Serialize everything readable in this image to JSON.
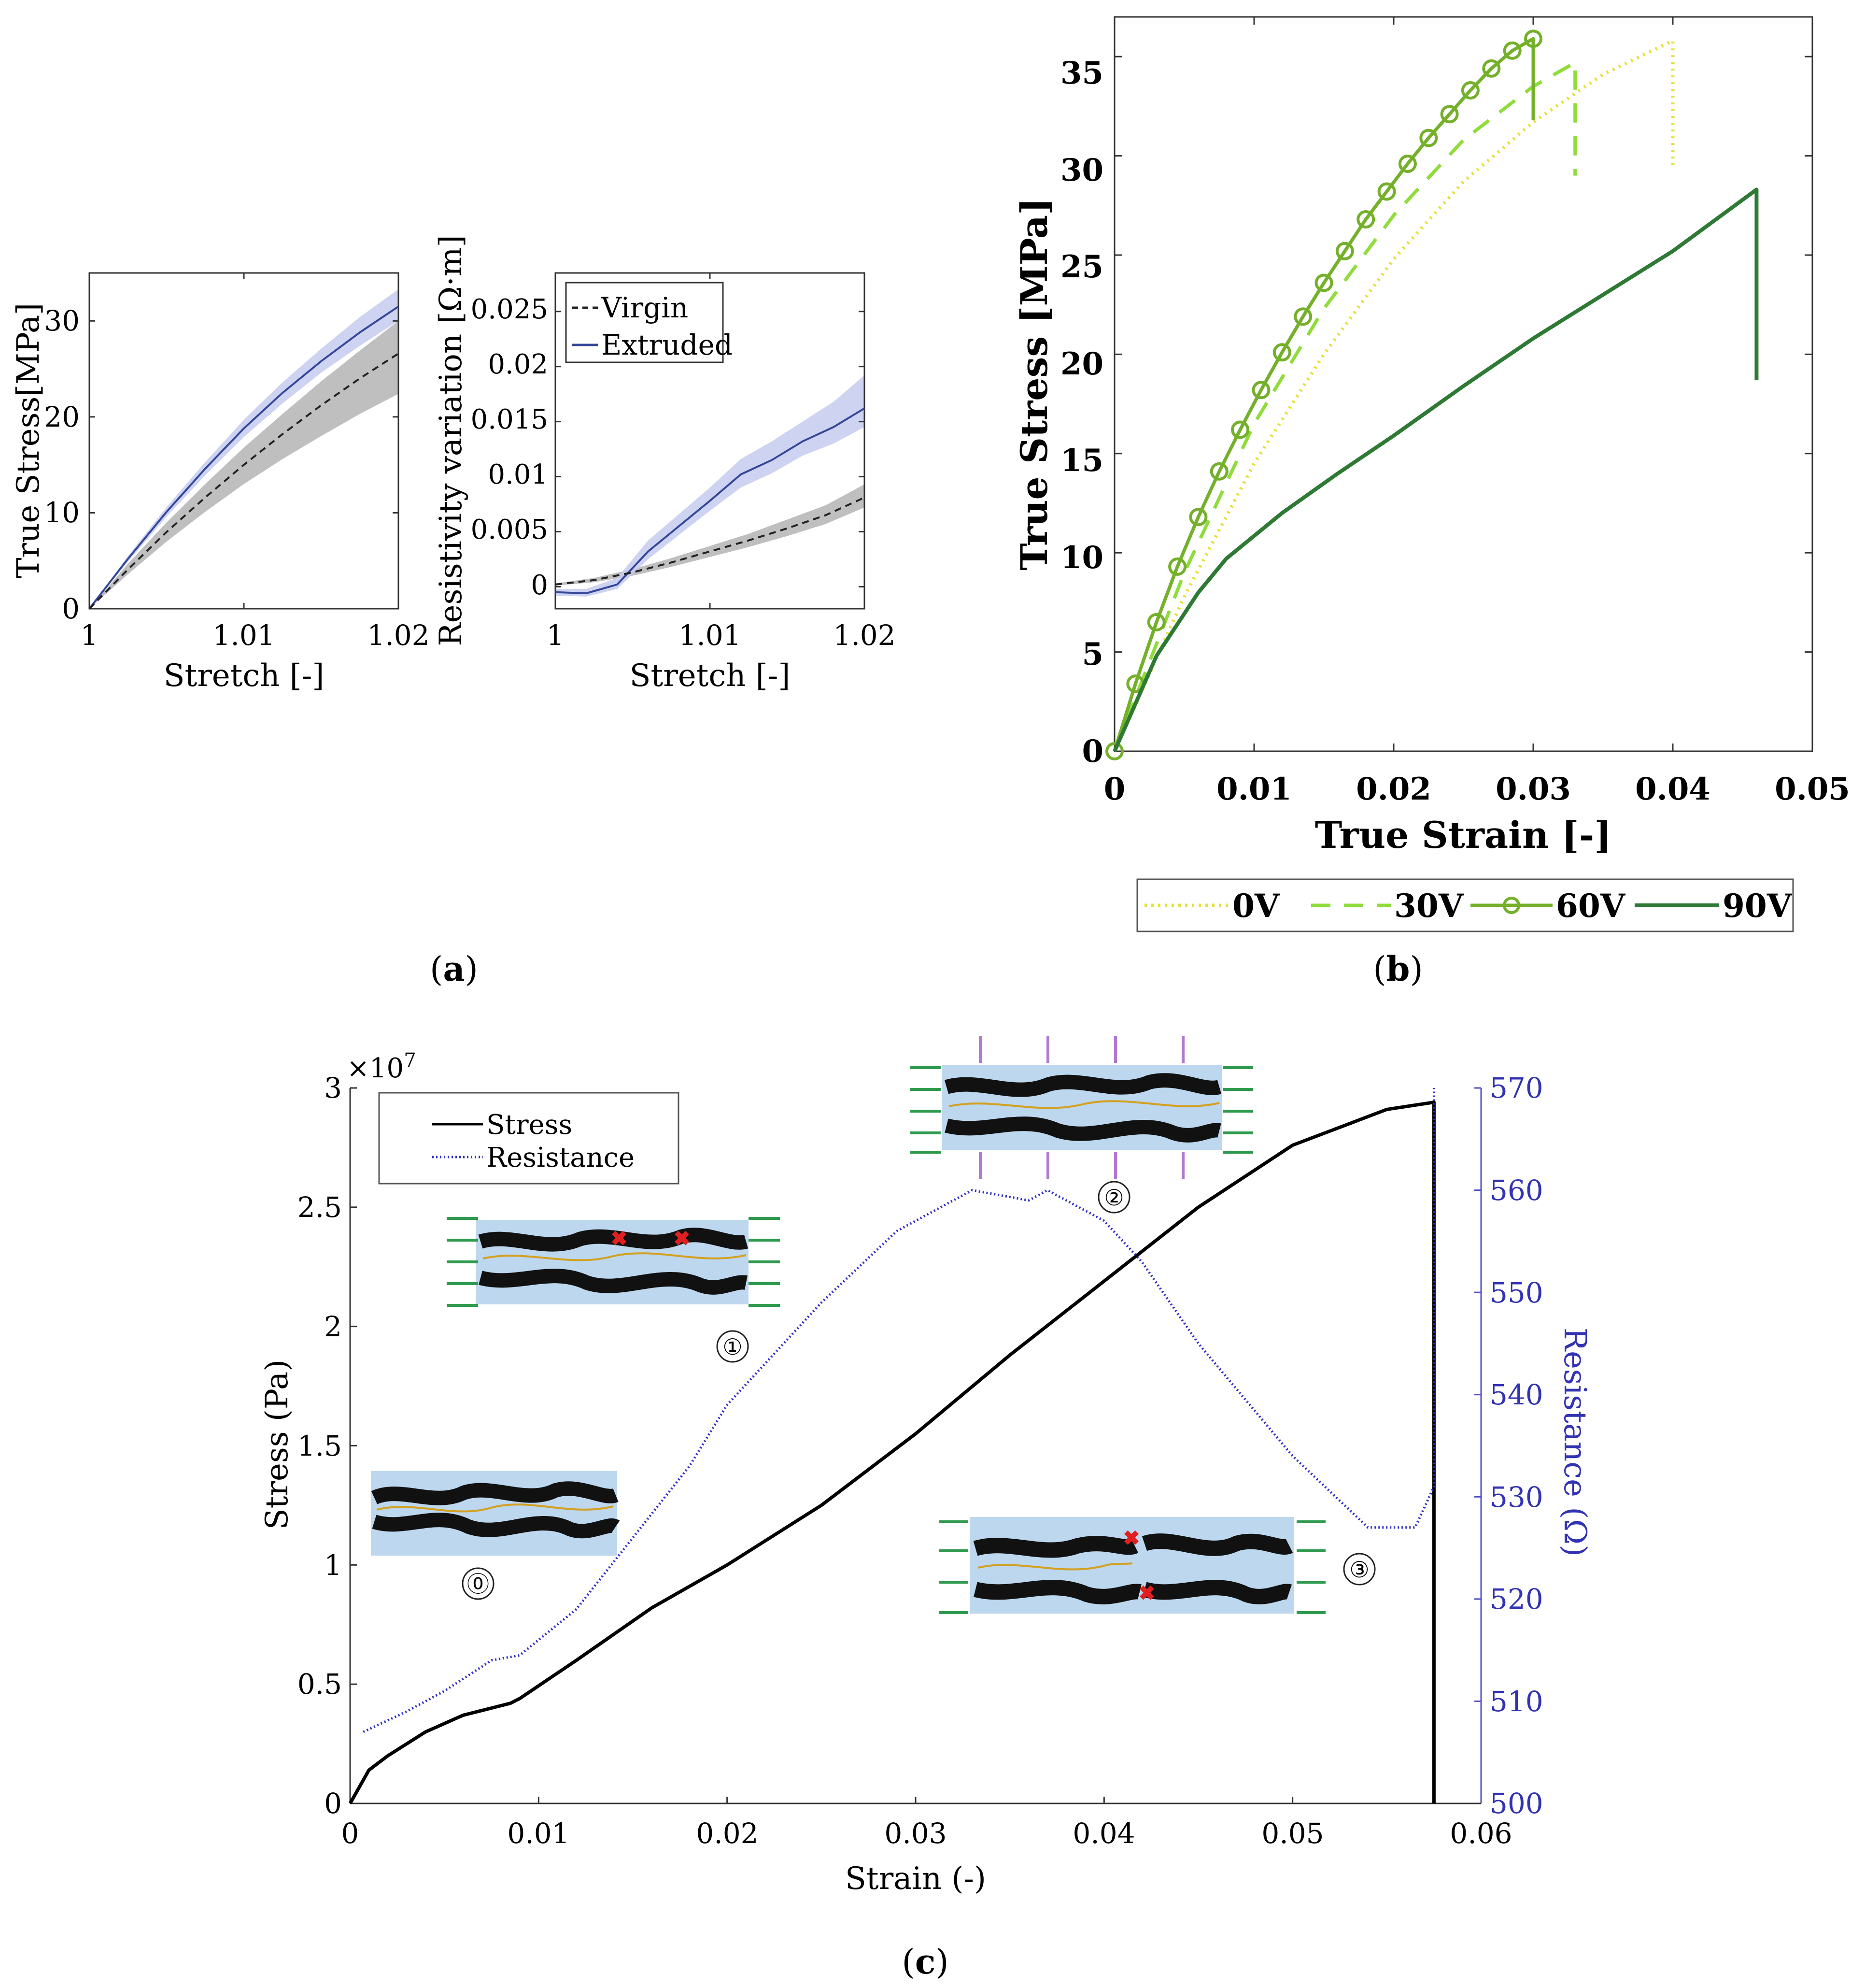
{
  "panel_labels": {
    "a": "a",
    "b": "b",
    "c": "c"
  },
  "colors": {
    "virgin": "#222222",
    "virgin_band": "#b4b4b4",
    "extruded": "#34489a",
    "extruded_band": "#c6cbef",
    "v0": "#e4e23a",
    "v30": "#8fdc3a",
    "v60": "#74b02a",
    "v90": "#2e7a35",
    "stress": "#000000",
    "resistance": "#3030c8"
  },
  "chart_data": [
    {
      "id": "a-left",
      "type": "line",
      "xlabel": "Stretch [-]",
      "ylabel": "True Stress[MPa]",
      "xlim": [
        1,
        1.02
      ],
      "ylim": [
        0,
        35
      ],
      "xticks": [
        1,
        1.01,
        1.02
      ],
      "xtick_labels": [
        "1",
        "1.01",
        "1.02"
      ],
      "yticks": [
        0,
        10,
        20,
        30
      ],
      "ytick_labels": [
        "0",
        "10",
        "20",
        "30"
      ],
      "series": [
        {
          "name": "Virgin",
          "style": "dashed",
          "x": [
            1,
            1.0025,
            1.005,
            1.0075,
            1.01,
            1.0125,
            1.015,
            1.0175,
            1.02
          ],
          "y": [
            0,
            4.1,
            8.0,
            11.6,
            15.0,
            18.2,
            21.2,
            24.0,
            26.6
          ],
          "band_lower": [
            0,
            3.6,
            7.0,
            10.1,
            13.0,
            15.6,
            18.0,
            20.3,
            22.4
          ],
          "band_upper": [
            0,
            4.7,
            9.0,
            13.0,
            16.8,
            20.3,
            23.7,
            26.9,
            30.0
          ]
        },
        {
          "name": "Extruded",
          "style": "solid",
          "x": [
            1,
            1.0025,
            1.005,
            1.0075,
            1.01,
            1.0125,
            1.015,
            1.0175,
            1.02
          ],
          "y": [
            0,
            5.2,
            10.1,
            14.6,
            18.8,
            22.5,
            25.8,
            28.8,
            31.5
          ],
          "band_lower": [
            0,
            4.9,
            9.6,
            13.9,
            17.9,
            21.4,
            24.6,
            27.4,
            30.0
          ],
          "band_upper": [
            0,
            5.5,
            10.6,
            15.3,
            19.7,
            23.6,
            27.1,
            30.4,
            33.3
          ]
        }
      ]
    },
    {
      "id": "a-right",
      "type": "line",
      "xlabel": "Stretch [-]",
      "ylabel": "Resistivity variation [Ω·m]",
      "xlim": [
        1,
        1.02
      ],
      "ylim": [
        -0.002,
        0.0285
      ],
      "xticks": [
        1,
        1.01,
        1.02
      ],
      "xtick_labels": [
        "1",
        "1.01",
        "1.02"
      ],
      "yticks": [
        0,
        0.005,
        0.01,
        0.015,
        0.02,
        0.025
      ],
      "ytick_labels": [
        "0",
        "0.005",
        "0.01",
        "0.015",
        "0.02",
        "0.025"
      ],
      "legend": {
        "position": "top-left",
        "entries": [
          "Virgin",
          "Extruded"
        ]
      },
      "series": [
        {
          "name": "Virgin",
          "style": "dashed",
          "x": [
            1,
            1.0025,
            1.005,
            1.0075,
            1.01,
            1.0125,
            1.015,
            1.0175,
            1.02
          ],
          "y": [
            0.0002,
            0.0006,
            0.0013,
            0.0022,
            0.0032,
            0.0042,
            0.0053,
            0.0065,
            0.0081
          ],
          "band_lower": [
            0.0001,
            0.0004,
            0.001,
            0.0018,
            0.0027,
            0.0036,
            0.0046,
            0.0057,
            0.0072
          ],
          "band_upper": [
            0.0003,
            0.0008,
            0.0016,
            0.0026,
            0.0037,
            0.0048,
            0.0061,
            0.0074,
            0.0093
          ]
        },
        {
          "name": "Extruded",
          "style": "solid",
          "x": [
            1,
            1.002,
            1.004,
            1.006,
            1.008,
            1.01,
            1.012,
            1.014,
            1.016,
            1.018,
            1.02
          ],
          "y": [
            -0.0005,
            -0.0006,
            0.0002,
            0.0032,
            0.0055,
            0.0078,
            0.0102,
            0.0115,
            0.0132,
            0.0145,
            0.0162
          ],
          "band_lower": [
            -0.0008,
            -0.0009,
            -0.0002,
            0.0025,
            0.0047,
            0.0069,
            0.009,
            0.0103,
            0.0119,
            0.013,
            0.0145
          ],
          "band_upper": [
            -0.0002,
            -0.0002,
            0.0008,
            0.0042,
            0.0066,
            0.009,
            0.0116,
            0.0132,
            0.015,
            0.0168,
            0.0192
          ]
        }
      ]
    },
    {
      "id": "b",
      "type": "line",
      "xlabel": "True Strain [-]",
      "ylabel": "True Stress [MPa]",
      "xlim": [
        0,
        0.05
      ],
      "ylim": [
        0,
        37
      ],
      "xticks": [
        0,
        0.01,
        0.02,
        0.03,
        0.04,
        0.05
      ],
      "xtick_labels": [
        "0",
        "0.01",
        "0.02",
        "0.03",
        "0.04",
        "0.05"
      ],
      "yticks": [
        0,
        5,
        10,
        15,
        20,
        25,
        30,
        35
      ],
      "ytick_labels": [
        "0",
        "5",
        "10",
        "15",
        "20",
        "25",
        "30",
        "35"
      ],
      "legend": {
        "position": "bottom-outside",
        "entries": [
          "0V",
          "30V",
          "60V",
          "90V"
        ]
      },
      "series": [
        {
          "name": "0V",
          "style": "dotted",
          "x": [
            0,
            0.005,
            0.01,
            0.015,
            0.02,
            0.025,
            0.03,
            0.035,
            0.04,
            0.04
          ],
          "y": [
            0,
            7.8,
            14.5,
            20.0,
            24.8,
            28.7,
            31.7,
            34.1,
            35.8,
            29.3
          ]
        },
        {
          "name": "30V",
          "style": "dashed",
          "x": [
            0,
            0.005,
            0.01,
            0.015,
            0.02,
            0.025,
            0.03,
            0.033,
            0.033
          ],
          "y": [
            0,
            9.0,
            16.5,
            22.3,
            27.0,
            30.8,
            33.5,
            34.7,
            29.0
          ]
        },
        {
          "name": "60V",
          "style": "solid-marker",
          "x": [
            0,
            0.0015,
            0.003,
            0.0045,
            0.006,
            0.0075,
            0.009,
            0.0105,
            0.012,
            0.0135,
            0.015,
            0.0165,
            0.018,
            0.0195,
            0.021,
            0.0225,
            0.024,
            0.0255,
            0.027,
            0.0285,
            0.03,
            0.03
          ],
          "y": [
            0,
            3.4,
            6.5,
            9.3,
            11.8,
            14.1,
            16.2,
            18.2,
            20.1,
            21.9,
            23.6,
            25.2,
            26.8,
            28.2,
            29.6,
            30.9,
            32.1,
            33.3,
            34.4,
            35.3,
            35.9,
            31.8
          ],
          "marker_count": 21
        },
        {
          "name": "90V",
          "style": "solid",
          "x": [
            0,
            0.003,
            0.006,
            0.008,
            0.012,
            0.016,
            0.02,
            0.025,
            0.03,
            0.035,
            0.04,
            0.046,
            0.046
          ],
          "y": [
            0,
            4.8,
            8.0,
            9.7,
            12.0,
            14.0,
            15.9,
            18.4,
            20.8,
            23.0,
            25.2,
            28.3,
            18.7
          ]
        }
      ]
    },
    {
      "id": "c",
      "type": "line",
      "xlabel": "Strain (-)",
      "ylabel": "Stress (Pa)",
      "y2label": "Resistance (Ω)",
      "xlim": [
        0,
        0.06
      ],
      "ylim": [
        0,
        3
      ],
      "y2lim": [
        500,
        570
      ],
      "xticks": [
        0,
        0.01,
        0.02,
        0.03,
        0.04,
        0.05,
        0.06
      ],
      "xtick_labels": [
        "0",
        "0.01",
        "0.02",
        "0.03",
        "0.04",
        "0.05",
        "0.06"
      ],
      "yticks": [
        0,
        0.5,
        1,
        1.5,
        2,
        2.5,
        3
      ],
      "ytick_labels": [
        "0",
        "0.5",
        "1",
        "1.5",
        "2",
        "2.5",
        "3"
      ],
      "y2ticks": [
        500,
        510,
        520,
        530,
        540,
        550,
        560,
        570
      ],
      "y2tick_labels": [
        "500",
        "510",
        "520",
        "530",
        "540",
        "550",
        "560",
        "570"
      ],
      "y_multiplier_base": "×10",
      "y_multiplier_exp": "7",
      "legend": {
        "position": "top-left",
        "entries": [
          "Stress",
          "Resistance"
        ]
      },
      "annotations": [
        "⓪",
        "①",
        "②",
        "③"
      ],
      "series": [
        {
          "name": "Stress",
          "axis": "left",
          "unit_scale": 10000000,
          "style": "solid",
          "x": [
            0,
            0.001,
            0.002,
            0.004,
            0.006,
            0.008,
            0.0085,
            0.009,
            0.012,
            0.016,
            0.02,
            0.025,
            0.03,
            0.035,
            0.04,
            0.045,
            0.05,
            0.055,
            0.0575,
            0.0575
          ],
          "y": [
            0,
            0.14,
            0.2,
            0.3,
            0.37,
            0.41,
            0.42,
            0.44,
            0.6,
            0.82,
            1.0,
            1.25,
            1.55,
            1.88,
            2.19,
            2.5,
            2.76,
            2.91,
            2.94,
            0
          ]
        },
        {
          "name": "Resistance",
          "axis": "right",
          "style": "dotted",
          "x": [
            0.0007,
            0.003,
            0.005,
            0.0075,
            0.009,
            0.012,
            0.015,
            0.018,
            0.02,
            0.025,
            0.029,
            0.033,
            0.036,
            0.037,
            0.04,
            0.042,
            0.045,
            0.05,
            0.054,
            0.0565,
            0.0575,
            0.0575
          ],
          "y": [
            507,
            509,
            511,
            514,
            514.5,
            519,
            526,
            533,
            539,
            549,
            556,
            560,
            559,
            560,
            557,
            553,
            545,
            534,
            527,
            527,
            531,
            570
          ]
        }
      ]
    }
  ]
}
